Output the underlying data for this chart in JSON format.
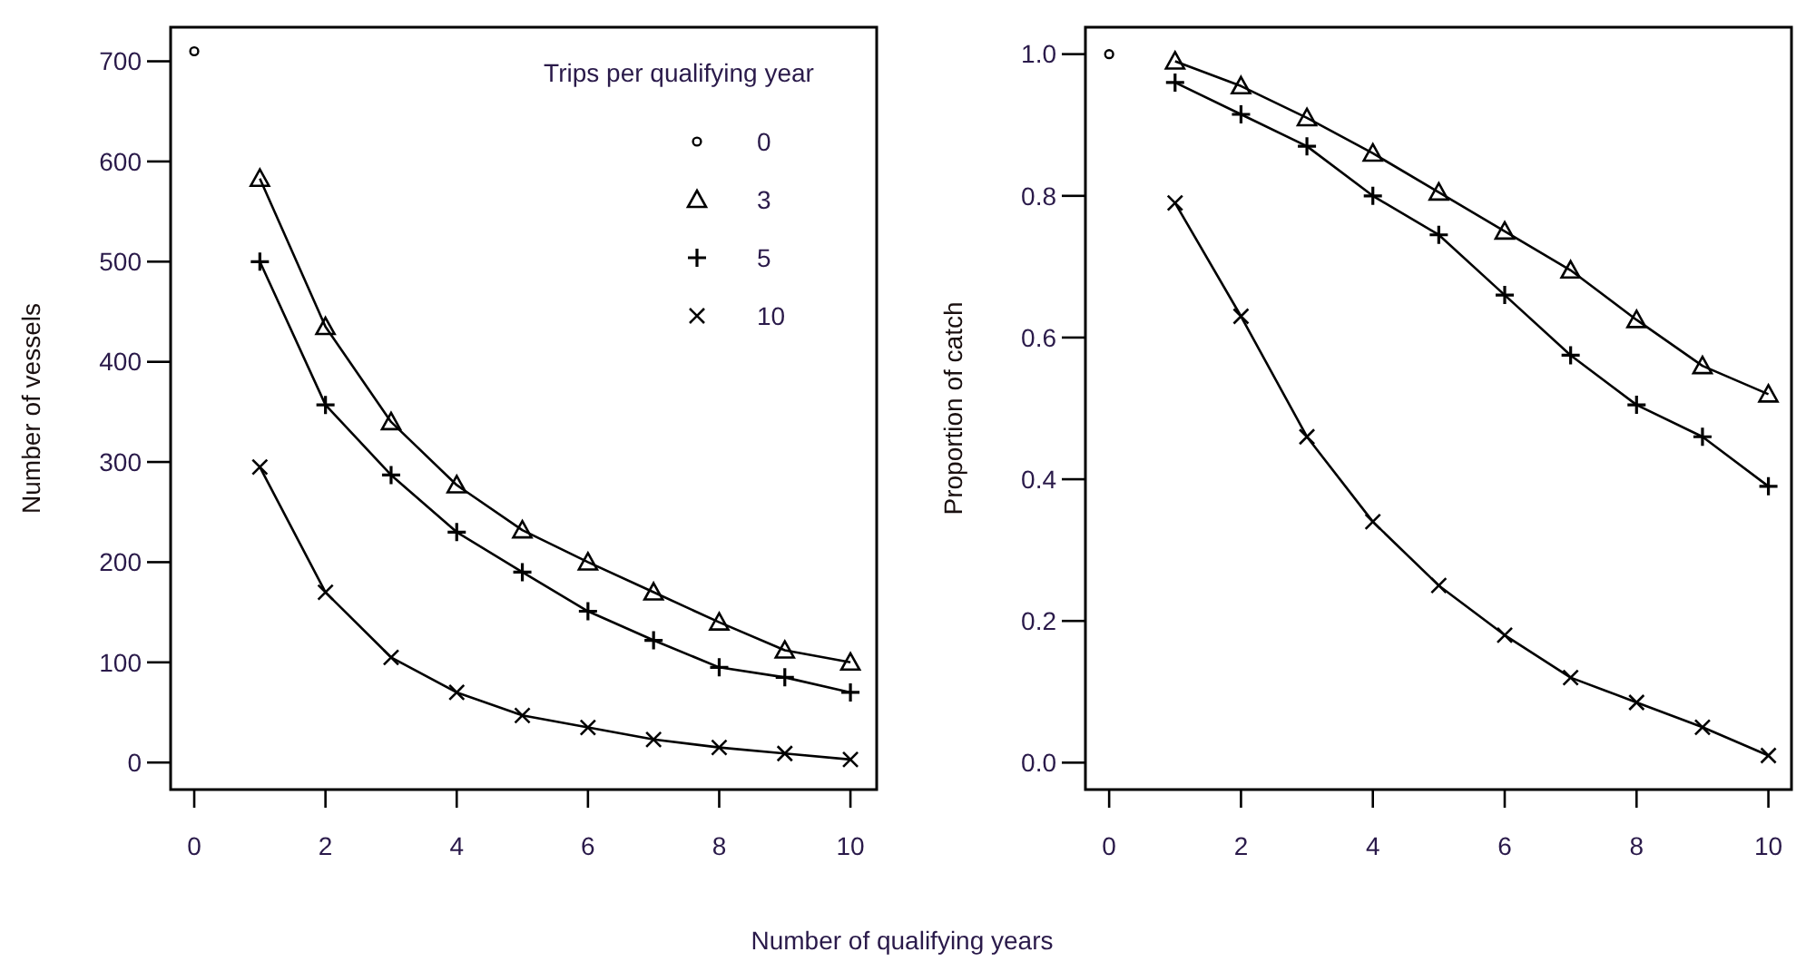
{
  "chart_data": [
    {
      "type": "line",
      "xlabel": "Number of qualifying years",
      "ylabel": "Number of vessels",
      "legend_title": "Trips per qualifying year",
      "legend": "top right",
      "xlim": [
        -0.36,
        10.4
      ],
      "xticks": [
        0,
        2,
        4,
        6,
        8,
        10
      ],
      "ylim": [
        -27,
        734
      ],
      "yticks": [
        0,
        100,
        200,
        300,
        400,
        500,
        600,
        700
      ],
      "x": [
        1,
        2,
        3,
        4,
        5,
        6,
        7,
        8,
        9,
        10
      ],
      "series": [
        {
          "name": "0",
          "type": "scatter",
          "marker": "circle",
          "color": "#000000",
          "x": [
            0
          ],
          "values": [
            710
          ]
        },
        {
          "name": "3",
          "marker": "triangle",
          "color": "#000000",
          "values": [
            583,
            435,
            340,
            277,
            232,
            200,
            170,
            140,
            112,
            100
          ]
        },
        {
          "name": "5",
          "marker": "cross",
          "color": "#000000",
          "values": [
            500,
            357,
            287,
            230,
            190,
            151,
            122,
            95,
            85,
            70
          ]
        },
        {
          "name": "10",
          "marker": "x",
          "color": "#000000",
          "values": [
            295,
            170,
            105,
            70,
            47,
            35,
            23,
            15,
            9,
            3
          ]
        }
      ]
    },
    {
      "type": "line",
      "ylabel": "Proportion of catch",
      "xlim": [
        -0.36,
        10.35
      ],
      "xticks": [
        0,
        2,
        4,
        6,
        8,
        10
      ],
      "ylim": [
        -0.038,
        1.038
      ],
      "yticks": [
        {
          "value": 0,
          "label": "0.0"
        },
        0.2,
        0.4,
        0.6,
        0.8,
        {
          "value": 1,
          "label": "1.0"
        }
      ],
      "x": [
        1,
        2,
        3,
        4,
        5,
        6,
        7,
        8,
        9,
        10
      ],
      "series": [
        {
          "type": "scatter",
          "marker": "circle",
          "color": "#000000",
          "x": [
            0
          ],
          "values": [
            1.0
          ]
        },
        {
          "marker": "triangle",
          "color": "#000000",
          "values": [
            0.99,
            0.955,
            0.91,
            0.86,
            0.805,
            0.75,
            0.695,
            0.625,
            0.56,
            0.52
          ]
        },
        {
          "marker": "cross",
          "color": "#000000",
          "values": [
            0.96,
            0.915,
            0.87,
            0.8,
            0.745,
            0.66,
            0.575,
            0.505,
            0.46,
            0.39
          ]
        },
        {
          "marker": "x",
          "color": "#000000",
          "values": [
            0.79,
            0.63,
            0.46,
            0.34,
            0.25,
            0.18,
            0.12,
            0.085,
            0.05,
            0.01
          ]
        }
      ]
    }
  ]
}
